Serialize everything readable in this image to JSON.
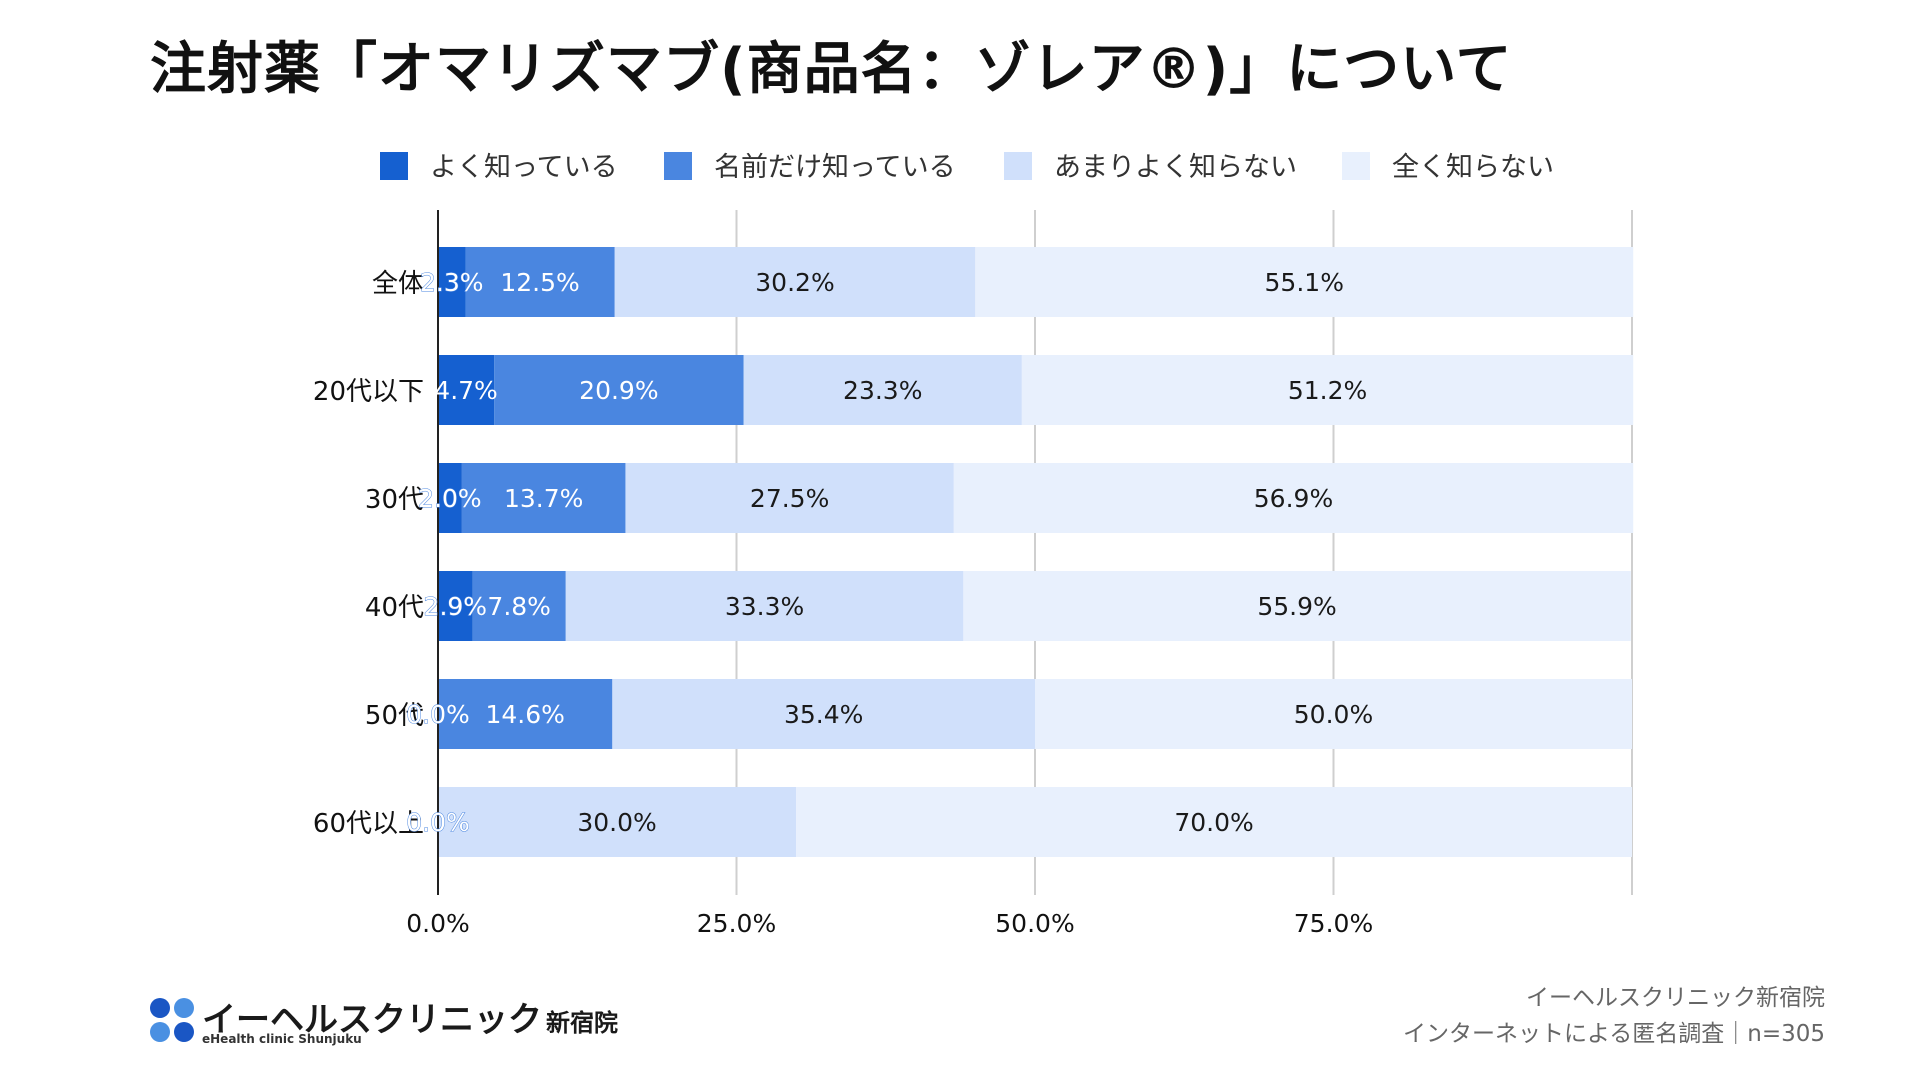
{
  "title": "注射薬「オマリズマブ(商品名：ゾレア®)」について",
  "chart_data": {
    "type": "bar",
    "orientation": "horizontal",
    "stacked": true,
    "title": "注射薬「オマリズマブ(商品名：ゾレア®)」について",
    "xlabel": "",
    "ylabel": "",
    "xlim": [
      0,
      100
    ],
    "x_ticks": [
      0,
      25,
      50,
      75
    ],
    "x_tick_labels": [
      "0.0%",
      "25.0%",
      "50.0%",
      "75.0%"
    ],
    "legend_position": "top",
    "categories": [
      "全体",
      "20代以下",
      "30代",
      "40代",
      "50代",
      "60代以上"
    ],
    "series": [
      {
        "name": "よく知っている",
        "color": "#1560d0",
        "values": [
          2.3,
          4.7,
          2.0,
          2.9,
          0.0,
          0.0
        ],
        "labels": [
          "2.3%",
          "4.7%",
          "2.0%",
          "2.9%",
          "0.0%",
          "0.0%"
        ]
      },
      {
        "name": "名前だけ知っている",
        "color": "#4a86e0",
        "values": [
          12.5,
          20.9,
          13.7,
          7.8,
          14.6,
          0.0
        ],
        "labels": [
          "12.5%",
          "20.9%",
          "13.7%",
          "7.8%",
          "14.6%",
          ""
        ]
      },
      {
        "name": "あまりよく知らない",
        "color": "#d0e0fb",
        "values": [
          30.2,
          23.3,
          27.5,
          33.3,
          35.4,
          30.0
        ],
        "labels": [
          "30.2%",
          "23.3%",
          "27.5%",
          "33.3%",
          "35.4%",
          "30.0%"
        ]
      },
      {
        "name": "全く知らない",
        "color": "#e8f0fd",
        "values": [
          55.1,
          51.2,
          56.9,
          55.9,
          50.0,
          70.0
        ],
        "labels": [
          "55.1%",
          "51.2%",
          "56.9%",
          "55.9%",
          "50.0%",
          "70.0%"
        ]
      }
    ],
    "grid": true
  },
  "logo": {
    "text": "イーヘルスクリニック",
    "suffix": "新宿院",
    "subtitle": "eHealth clinic Shunjuku",
    "colors": [
      "#1a56c4",
      "#4a90e2",
      "#4a90e2",
      "#1a56c4"
    ]
  },
  "source": {
    "line1": "イーヘルスクリニック新宿院",
    "line2": "インターネットによる匿名調査｜n=305"
  }
}
